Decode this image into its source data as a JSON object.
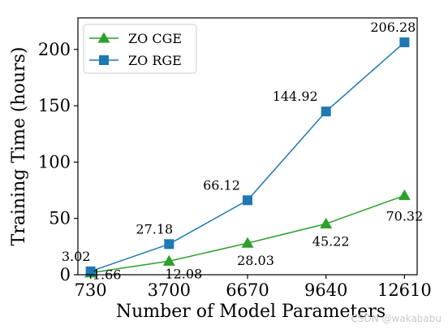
{
  "chart_data": {
    "type": "line",
    "title": "",
    "xlabel": "Number of Model Parameters",
    "ylabel": "Training Time (hours)",
    "x": [
      730,
      3700,
      6670,
      9640,
      12610
    ],
    "x_tick_labels": [
      "730",
      "3700",
      "6670",
      "9640",
      "12610"
    ],
    "y_ticks": [
      0,
      50,
      100,
      150,
      200
    ],
    "y_tick_labels": [
      "0",
      "50",
      "100",
      "150",
      "200"
    ],
    "xlim": [
      250,
      13090
    ],
    "ylim": [
      0,
      228
    ],
    "grid": false,
    "legend_position": "upper-left",
    "series": [
      {
        "name": "ZO CGE",
        "marker": "triangle",
        "color": "#2ca02c",
        "values": [
          1.66,
          12.08,
          28.03,
          45.22,
          70.32
        ],
        "labels": [
          "1.66",
          "12.08",
          "28.03",
          "45.22",
          "70.32"
        ]
      },
      {
        "name": "ZO RGE",
        "marker": "square",
        "color": "#1f77b4",
        "values": [
          3.02,
          27.18,
          66.12,
          144.92,
          206.28
        ],
        "labels": [
          "3.02",
          "27.18",
          "66.12",
          "144.92",
          "206.28"
        ]
      }
    ]
  },
  "watermark": "CSDN @wakababu"
}
